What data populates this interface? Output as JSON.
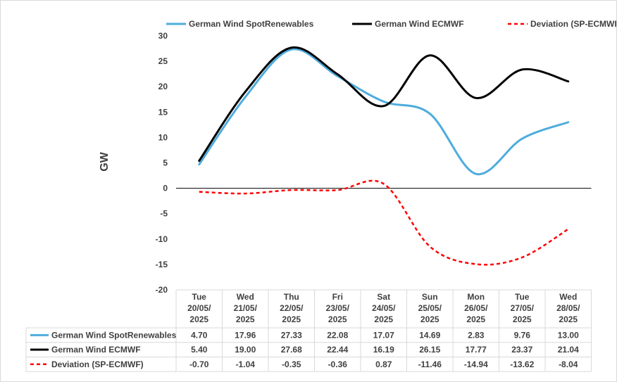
{
  "chart_data": {
    "type": "line",
    "ylabel": "GW",
    "ylim": [
      -20,
      30
    ],
    "yticks": [
      30,
      25,
      20,
      15,
      10,
      5,
      0,
      -5,
      -10,
      -15,
      -20
    ],
    "categories": [
      [
        "Tue",
        "20/05/",
        "2025"
      ],
      [
        "Wed",
        "21/05/",
        "2025"
      ],
      [
        "Thu",
        "22/05/",
        "2025"
      ],
      [
        "Fri",
        "23/05/",
        "2025"
      ],
      [
        "Sat",
        "24/05/",
        "2025"
      ],
      [
        "Sun",
        "25/05/",
        "2025"
      ],
      [
        "Mon",
        "26/05/",
        "2025"
      ],
      [
        "Tue",
        "27/05/",
        "2025"
      ],
      [
        "Wed",
        "28/05/",
        "2025"
      ]
    ],
    "series": [
      {
        "name": "German Wind SpotRenewables",
        "color": "#4eacdd",
        "dash": "solid",
        "values": [
          4.7,
          17.96,
          27.33,
          22.08,
          17.07,
          14.69,
          2.83,
          9.76,
          13.0
        ],
        "labels": [
          "4.70",
          "17.96",
          "27.33",
          "22.08",
          "17.07",
          "14.69",
          "2.83",
          "9.76",
          "13.00"
        ]
      },
      {
        "name": "German Wind ECMWF",
        "color": "#000000",
        "dash": "solid",
        "values": [
          5.4,
          19.0,
          27.68,
          22.44,
          16.19,
          26.15,
          17.77,
          23.37,
          21.04
        ],
        "labels": [
          "5.40",
          "19.00",
          "27.68",
          "22.44",
          "16.19",
          "26.15",
          "17.77",
          "23.37",
          "21.04"
        ]
      },
      {
        "name": "Deviation (SP-ECMWF)",
        "color": "#ff0000",
        "dash": "dashed",
        "values": [
          -0.7,
          -1.04,
          -0.35,
          -0.36,
          0.87,
          -11.46,
          -14.94,
          -13.62,
          -8.04
        ],
        "labels": [
          "-0.70",
          "-1.04",
          "-0.35",
          "-0.36",
          "0.87",
          "-11.46",
          "-14.94",
          "-13.62",
          "-8.04"
        ]
      }
    ],
    "legend": "top",
    "grid": false
  }
}
